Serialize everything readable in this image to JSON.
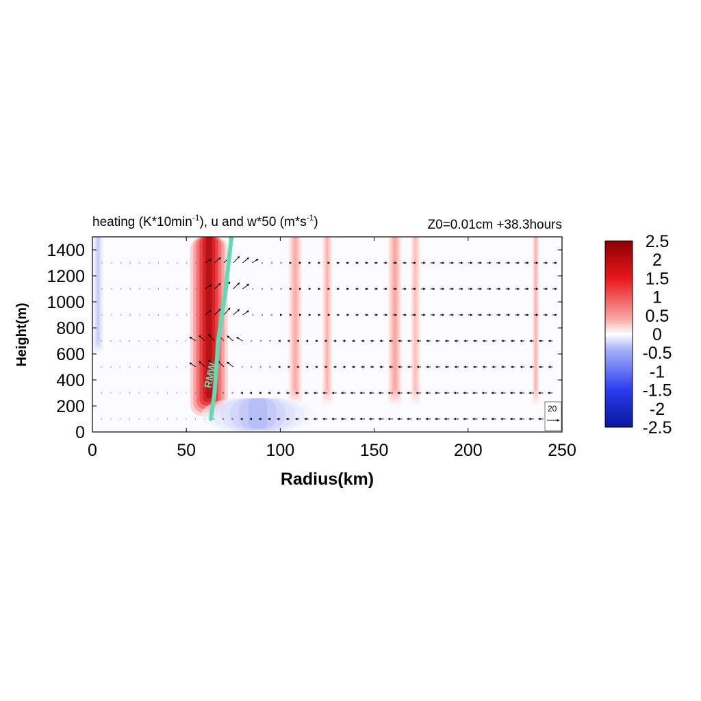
{
  "chart_data": {
    "type": "heatmap",
    "title": {
      "left_main": "heating (K*10min",
      "left_sup1": "-1",
      "left_mid": "), u and w*50 (m*s",
      "left_sup2": "-1",
      "left_end": ")",
      "right": "Z0=0.01cm  +38.3hours"
    },
    "xlabel": "Radius(km)",
    "ylabel": "Height(m)",
    "xlim": [
      0,
      250
    ],
    "ylim": [
      0,
      1500
    ],
    "x_ticks": [
      "0",
      "50",
      "100",
      "150",
      "200",
      "250"
    ],
    "y_ticks": [
      "0",
      "200",
      "400",
      "600",
      "800",
      "1000",
      "1200",
      "1400"
    ],
    "colorbar": {
      "range": [
        -2.5,
        2.5
      ],
      "tick_labels": [
        "2.5",
        "2",
        "1.5",
        "1",
        "0.5",
        "0",
        "-0.5",
        "-1",
        "-1.5",
        "-2",
        "-2.5"
      ],
      "colors": {
        "min": "#08179c",
        "low": "#2a3cf0",
        "zero": "#ffffff",
        "high": "#e8161a",
        "max": "#8a0005"
      }
    },
    "heating_features": [
      {
        "name": "main-eyewall-heating",
        "r_center": 62,
        "r_halfwidth": 10,
        "z_bottom": 120,
        "z_top": 1500,
        "value": 2.3
      },
      {
        "name": "outer-band-1",
        "r_center": 108,
        "r_halfwidth": 4,
        "z_bottom": 200,
        "z_top": 1500,
        "value": 0.45
      },
      {
        "name": "outer-band-2",
        "r_center": 125,
        "r_halfwidth": 3,
        "z_bottom": 200,
        "z_top": 1500,
        "value": 0.4
      },
      {
        "name": "outer-band-3",
        "r_center": 161,
        "r_halfwidth": 4,
        "z_bottom": 200,
        "z_top": 1500,
        "value": 0.5
      },
      {
        "name": "outer-band-4",
        "r_center": 172,
        "r_halfwidth": 3,
        "z_bottom": 200,
        "z_top": 1500,
        "value": 0.35
      },
      {
        "name": "outer-band-5",
        "r_center": 236,
        "r_halfwidth": 2,
        "z_bottom": 200,
        "z_top": 1500,
        "value": 0.4
      },
      {
        "name": "boundary-cooling",
        "r_center": 88,
        "r_halfwidth": 30,
        "z_bottom": 0,
        "z_top": 260,
        "value": -0.4
      },
      {
        "name": "inner-cooling",
        "r_center": 3,
        "r_halfwidth": 3,
        "z_bottom": 600,
        "z_top": 1500,
        "value": -0.3
      }
    ],
    "vector_levels_m": [
      100,
      300,
      500,
      700,
      900,
      1100,
      1300
    ],
    "rmw_line": {
      "label": "RMW",
      "color": "#5fdcb4",
      "points": [
        [
          63,
          100
        ],
        [
          64,
          200
        ],
        [
          65,
          300
        ],
        [
          66,
          500
        ],
        [
          67,
          700
        ],
        [
          69,
          900
        ],
        [
          71,
          1100
        ],
        [
          72.5,
          1300
        ],
        [
          74,
          1500
        ]
      ]
    },
    "reference_vector": {
      "label": "20"
    }
  }
}
